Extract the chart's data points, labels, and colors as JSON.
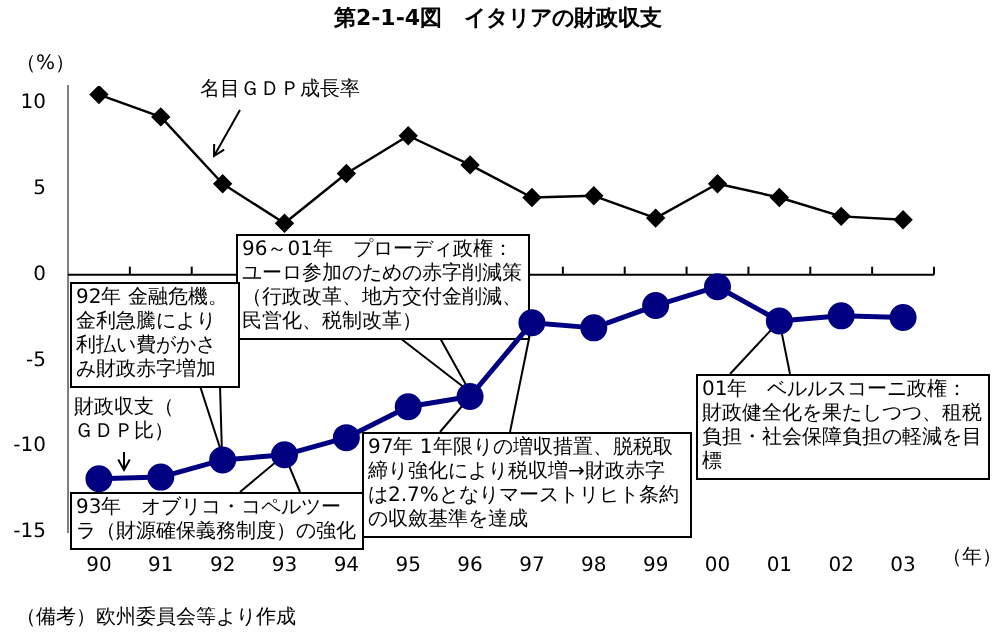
{
  "chart_data": {
    "type": "line",
    "title": "第2-1-4図　イタリアの財政収支",
    "ylabel": "（%）",
    "xlabel": "（年）",
    "categories": [
      "90",
      "91",
      "92",
      "93",
      "94",
      "95",
      "96",
      "97",
      "98",
      "99",
      "00",
      "01",
      "02",
      "03"
    ],
    "series": [
      {
        "name": "名目ＧＤＰ成長率",
        "color": "#000000",
        "marker": "diamond",
        "values": [
          10.5,
          9.2,
          5.3,
          3.0,
          5.9,
          8.1,
          6.4,
          4.5,
          4.6,
          3.3,
          5.3,
          4.5,
          3.4,
          3.2
        ]
      },
      {
        "name": "財政収支（ＧＤＰ比）",
        "color": "#000080",
        "marker": "circle",
        "values": [
          -11.9,
          -11.8,
          -10.8,
          -10.5,
          -9.5,
          -7.7,
          -7.1,
          -2.8,
          -3.1,
          -1.8,
          -0.7,
          -2.7,
          -2.4,
          -2.5
        ]
      }
    ],
    "ref_lines": [
      {
        "axis": "y",
        "value": 0,
        "color": "#000000"
      }
    ],
    "ylim": [
      -15,
      11
    ],
    "yticks": [
      -15,
      -10,
      -5,
      0,
      5,
      10
    ],
    "grid": false,
    "legend": false,
    "annotations": [
      "96～01年　プローディ政権：ユーロ参加のための赤字削減策（行政改革、地方交付金削減、民営化、税制改革）",
      "92年 金融危機。金利急騰により利払い費がかさみ財政赤字増加",
      {
        "text": "93年　オブリコ・コペルツーラ（財源確保義務制度）の強化",
        "x": "93",
        "y": -10.5
      },
      "97年 1年限りの増収措置、脱税取締り強化により税収増→財政赤字は2.7%となりマーストリヒト条約の収斂基準を達成",
      {
        "text": "01年　ベルルスコーニ政権：財政健全化を果たしつつ、租税負担・社会保障負担の軽減を目標",
        "x": "01",
        "y": -2.7
      },
      "（備考）欧州委員会等より作成"
    ]
  }
}
